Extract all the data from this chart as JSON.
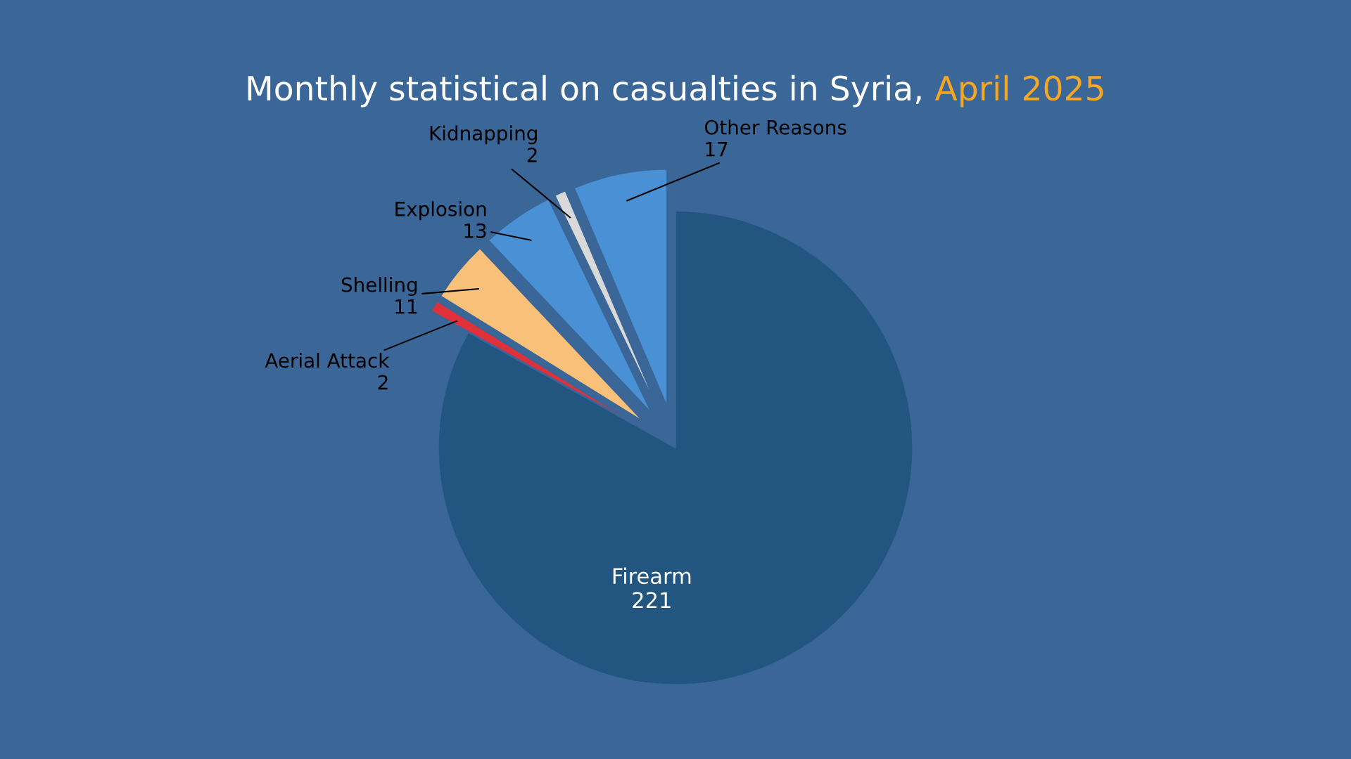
{
  "chart_data": {
    "type": "pie",
    "title": "Monthly statistical on casualties in Syria, April 2025",
    "categories": [
      "Other Reasons",
      "Kidnapping",
      "Explosion",
      "Shelling",
      "Aerial Attack",
      "Firearm"
    ],
    "values": [
      17,
      2,
      13,
      11,
      2,
      221
    ],
    "colors": [
      "#4a90d4",
      "#d9d9d9",
      "#4a90d4",
      "#f9c07a",
      "#e0303a",
      "#22557f"
    ],
    "data_labels": true
  }
}
